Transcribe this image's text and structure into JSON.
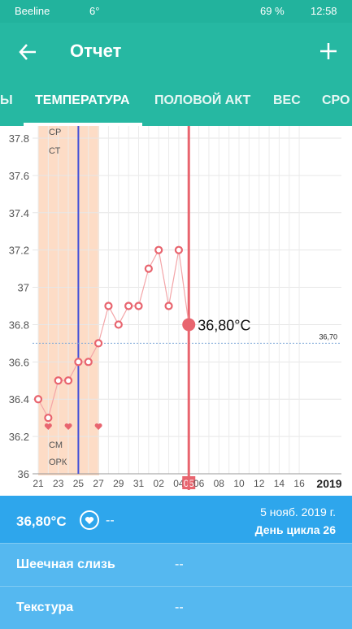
{
  "status_bar": {
    "carrier": "Beeline",
    "temperature": "6°",
    "battery": "69 %",
    "time": "12:58"
  },
  "header": {
    "title": "Отчет"
  },
  "tabs": [
    "Ы",
    "ТЕМПЕРАТУРА",
    "ПОЛОВОЙ АКТ",
    "ВЕС",
    "СРО"
  ],
  "chart_data": {
    "type": "line",
    "categories": [
      "21",
      null,
      "23",
      null,
      "25",
      null,
      "27",
      null,
      "29",
      null,
      "31",
      null,
      "02",
      null,
      "04",
      "05",
      "06",
      null,
      "08",
      null,
      "10",
      null,
      "12",
      null,
      "14",
      null,
      "16"
    ],
    "series": [
      {
        "color": "#e8656f",
        "values": [
          36.4,
          36.3,
          36.5,
          36.5,
          36.6,
          36.6,
          36.7,
          36.9,
          36.8,
          36.9,
          36.9,
          37.1,
          37.2,
          36.9,
          37.2,
          36.8,
          null,
          null,
          null,
          null,
          null,
          null,
          null,
          null,
          null,
          null,
          null
        ]
      }
    ],
    "ylim": [
      36,
      37.8
    ],
    "yticks": [
      36,
      36.2,
      36.4,
      36.6,
      36.8,
      37,
      37.2,
      37.4,
      37.6,
      37.8
    ],
    "coverline": {
      "value": 36.7,
      "label": "36,70"
    },
    "selected_label": "36,80°C",
    "year": "2019",
    "grid": true,
    "markers_top": [
      "СР",
      "СТ"
    ],
    "markers_bottom": [
      "СМ",
      "ОРК"
    ]
  },
  "details": {
    "temperature": "36,80°C",
    "intercourse": "--",
    "date": "5 нояб. 2019 г.",
    "cycle_day": "День цикла 26",
    "rows": [
      {
        "label": "Шеечная слизь",
        "value": "--"
      },
      {
        "label": "Текстура",
        "value": "--"
      }
    ]
  }
}
